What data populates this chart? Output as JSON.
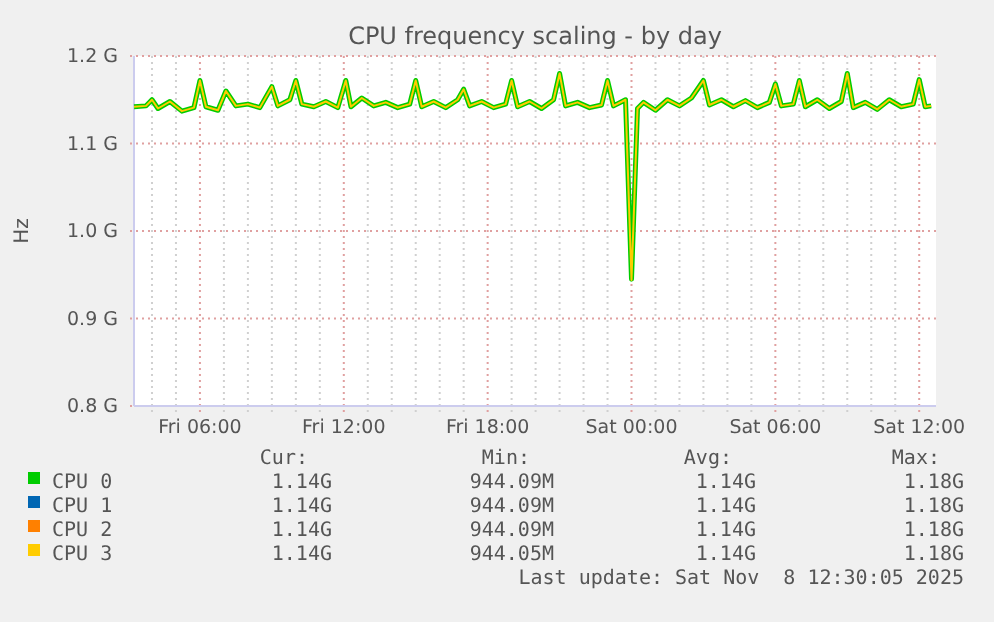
{
  "chart_data": {
    "type": "line",
    "title": "CPU frequency scaling - by day",
    "ylabel": "Hz",
    "x": [
      "2025-11-07T03:15",
      "2025-11-07T03:45",
      "2025-11-07T04:00",
      "2025-11-07T04:15",
      "2025-11-07T04:45",
      "2025-11-07T05:15",
      "2025-11-07T05:45",
      "2025-11-07T06:00",
      "2025-11-07T06:15",
      "2025-11-07T06:45",
      "2025-11-07T07:05",
      "2025-11-07T07:30",
      "2025-11-07T08:00",
      "2025-11-07T08:30",
      "2025-11-07T09:00",
      "2025-11-07T09:15",
      "2025-11-07T09:45",
      "2025-11-07T10:00",
      "2025-11-07T10:15",
      "2025-11-07T10:45",
      "2025-11-07T11:15",
      "2025-11-07T11:45",
      "2025-11-07T12:05",
      "2025-11-07T12:18",
      "2025-11-07T12:45",
      "2025-11-07T13:15",
      "2025-11-07T13:45",
      "2025-11-07T14:15",
      "2025-11-07T14:45",
      "2025-11-07T15:00",
      "2025-11-07T15:15",
      "2025-11-07T15:45",
      "2025-11-07T16:15",
      "2025-11-07T16:45",
      "2025-11-07T17:00",
      "2025-11-07T17:15",
      "2025-11-07T17:45",
      "2025-11-07T18:15",
      "2025-11-07T18:45",
      "2025-11-07T19:00",
      "2025-11-07T19:15",
      "2025-11-07T19:45",
      "2025-11-07T20:15",
      "2025-11-07T20:45",
      "2025-11-07T21:00",
      "2025-11-07T21:15",
      "2025-11-07T21:45",
      "2025-11-07T22:15",
      "2025-11-07T22:45",
      "2025-11-07T23:00",
      "2025-11-07T23:15",
      "2025-11-07T23:45",
      "2025-11-08T00:00",
      "2025-11-08T00:15",
      "2025-11-08T00:30",
      "2025-11-08T01:00",
      "2025-11-08T01:30",
      "2025-11-08T02:00",
      "2025-11-08T02:30",
      "2025-11-08T03:00",
      "2025-11-08T03:15",
      "2025-11-08T03:45",
      "2025-11-08T04:15",
      "2025-11-08T04:45",
      "2025-11-08T05:15",
      "2025-11-08T05:45",
      "2025-11-08T06:00",
      "2025-11-08T06:15",
      "2025-11-08T06:45",
      "2025-11-08T07:00",
      "2025-11-08T07:15",
      "2025-11-08T07:45",
      "2025-11-08T08:15",
      "2025-11-08T08:45",
      "2025-11-08T09:00",
      "2025-11-08T09:15",
      "2025-11-08T09:45",
      "2025-11-08T10:15",
      "2025-11-08T10:45",
      "2025-11-08T11:15",
      "2025-11-08T11:45",
      "2025-11-08T12:00",
      "2025-11-08T12:15",
      "2025-11-08T12:30"
    ],
    "series": [
      {
        "name": "CPU 0",
        "color": "#00cc00",
        "values": [
          1.142,
          1.143,
          1.15,
          1.14,
          1.148,
          1.137,
          1.141,
          1.172,
          1.142,
          1.138,
          1.16,
          1.143,
          1.145,
          1.141,
          1.165,
          1.143,
          1.15,
          1.172,
          1.145,
          1.142,
          1.148,
          1.141,
          1.172,
          1.142,
          1.152,
          1.143,
          1.147,
          1.141,
          1.145,
          1.172,
          1.142,
          1.148,
          1.141,
          1.15,
          1.162,
          1.143,
          1.148,
          1.141,
          1.145,
          1.172,
          1.142,
          1.148,
          1.14,
          1.15,
          1.18,
          1.143,
          1.147,
          1.141,
          1.144,
          1.172,
          1.143,
          1.15,
          0.945,
          1.14,
          1.147,
          1.138,
          1.15,
          1.143,
          1.152,
          1.172,
          1.144,
          1.15,
          1.142,
          1.149,
          1.141,
          1.147,
          1.168,
          1.143,
          1.145,
          1.172,
          1.142,
          1.15,
          1.14,
          1.148,
          1.18,
          1.141,
          1.147,
          1.139,
          1.15,
          1.142,
          1.145,
          1.173,
          1.142,
          1.143
        ]
      },
      {
        "name": "CPU 1",
        "color": "#0066b3",
        "values": [
          null,
          null,
          null,
          null,
          null,
          null,
          null,
          null,
          null,
          null,
          null,
          null,
          null,
          null,
          null,
          null,
          null,
          null,
          null,
          null,
          null,
          null,
          null,
          null,
          null,
          null,
          null,
          null,
          null,
          null,
          null,
          null,
          null,
          null,
          null,
          null,
          null,
          null,
          null,
          null,
          null,
          null,
          null,
          null,
          null,
          null,
          null,
          null,
          null,
          null,
          null,
          null,
          null,
          null,
          null,
          null,
          null,
          null,
          null,
          null,
          null,
          null,
          null,
          null,
          null,
          null,
          null,
          null,
          null,
          null,
          null,
          null,
          null,
          null,
          null,
          null,
          null,
          null,
          null,
          null,
          null,
          null,
          null,
          null
        ]
      },
      {
        "name": "CPU 2",
        "color": "#ff8000",
        "values": [
          null,
          null,
          null,
          null,
          null,
          null,
          null,
          null,
          null,
          null,
          null,
          null,
          null,
          null,
          null,
          null,
          null,
          null,
          null,
          null,
          null,
          null,
          null,
          null,
          null,
          null,
          null,
          null,
          null,
          null,
          null,
          null,
          null,
          null,
          null,
          null,
          null,
          null,
          null,
          null,
          null,
          null,
          null,
          null,
          null,
          null,
          null,
          null,
          null,
          null,
          null,
          null,
          null,
          null,
          null,
          null,
          null,
          null,
          null,
          null,
          null,
          null,
          null,
          null,
          null,
          null,
          null,
          null,
          null,
          null,
          null,
          null,
          null,
          null,
          null,
          null,
          null,
          null,
          null,
          null,
          null,
          null,
          null,
          null
        ]
      },
      {
        "name": "CPU 3",
        "color": "#ffcc00",
        "values": [
          1.142,
          1.143,
          1.15,
          1.14,
          1.148,
          1.137,
          1.141,
          1.172,
          1.142,
          1.138,
          1.16,
          1.143,
          1.145,
          1.141,
          1.165,
          1.143,
          1.15,
          1.172,
          1.145,
          1.142,
          1.148,
          1.141,
          1.172,
          1.142,
          1.152,
          1.143,
          1.147,
          1.141,
          1.145,
          1.172,
          1.142,
          1.148,
          1.141,
          1.15,
          1.162,
          1.143,
          1.148,
          1.141,
          1.145,
          1.172,
          1.142,
          1.148,
          1.14,
          1.15,
          1.18,
          1.143,
          1.147,
          1.141,
          1.144,
          1.172,
          1.143,
          1.15,
          0.944,
          1.14,
          1.147,
          1.138,
          1.15,
          1.143,
          1.152,
          1.172,
          1.144,
          1.15,
          1.142,
          1.149,
          1.141,
          1.147,
          1.168,
          1.143,
          1.145,
          1.172,
          1.142,
          1.15,
          1.14,
          1.148,
          1.18,
          1.141,
          1.147,
          1.139,
          1.15,
          1.142,
          1.145,
          1.173,
          1.142,
          1.143
        ]
      }
    ],
    "xlim": [
      "2025-11-07T03:15",
      "2025-11-08T12:42"
    ],
    "xticks": [
      {
        "value": "2025-11-07T04:00",
        "label": null
      },
      {
        "value": "2025-11-07T05:00",
        "label": null
      },
      {
        "value": "2025-11-07T06:00",
        "label": "Fri 06:00"
      },
      {
        "value": "2025-11-07T07:00",
        "label": null
      },
      {
        "value": "2025-11-07T08:00",
        "label": null
      },
      {
        "value": "2025-11-07T09:00",
        "label": null
      },
      {
        "value": "2025-11-07T10:00",
        "label": null
      },
      {
        "value": "2025-11-07T11:00",
        "label": null
      },
      {
        "value": "2025-11-07T12:00",
        "label": "Fri 12:00"
      },
      {
        "value": "2025-11-07T13:00",
        "label": null
      },
      {
        "value": "2025-11-07T14:00",
        "label": null
      },
      {
        "value": "2025-11-07T15:00",
        "label": null
      },
      {
        "value": "2025-11-07T16:00",
        "label": null
      },
      {
        "value": "2025-11-07T17:00",
        "label": null
      },
      {
        "value": "2025-11-07T18:00",
        "label": "Fri 18:00"
      },
      {
        "value": "2025-11-07T19:00",
        "label": null
      },
      {
        "value": "2025-11-07T20:00",
        "label": null
      },
      {
        "value": "2025-11-07T21:00",
        "label": null
      },
      {
        "value": "2025-11-07T22:00",
        "label": null
      },
      {
        "value": "2025-11-07T23:00",
        "label": null
      },
      {
        "value": "2025-11-08T00:00",
        "label": "Sat 00:00"
      },
      {
        "value": "2025-11-08T01:00",
        "label": null
      },
      {
        "value": "2025-11-08T02:00",
        "label": null
      },
      {
        "value": "2025-11-08T03:00",
        "label": null
      },
      {
        "value": "2025-11-08T04:00",
        "label": null
      },
      {
        "value": "2025-11-08T05:00",
        "label": null
      },
      {
        "value": "2025-11-08T06:00",
        "label": "Sat 06:00"
      },
      {
        "value": "2025-11-08T07:00",
        "label": null
      },
      {
        "value": "2025-11-08T08:00",
        "label": null
      },
      {
        "value": "2025-11-08T09:00",
        "label": null
      },
      {
        "value": "2025-11-08T10:00",
        "label": null
      },
      {
        "value": "2025-11-08T11:00",
        "label": null
      },
      {
        "value": "2025-11-08T12:00",
        "label": "Sat 12:00"
      }
    ],
    "ylim": [
      0.8,
      1.2
    ],
    "yticks": [
      {
        "value": 0.8,
        "label": "0.8 G"
      },
      {
        "value": 0.9,
        "label": "0.9 G"
      },
      {
        "value": 1.0,
        "label": "1.0 G"
      },
      {
        "value": 1.1,
        "label": "1.1 G"
      },
      {
        "value": 1.2,
        "label": "1.2 G"
      }
    ],
    "grid": true,
    "legend": "bottom",
    "marker": "none",
    "line_style": "solid",
    "annotations": [
      "Cur:",
      "Min:",
      "Avg:",
      "Max:",
      "1.14G",
      "944.09M",
      "1.14G",
      "1.18G",
      "1.14G",
      "944.09M",
      "1.14G",
      "1.18G",
      "1.14G",
      "944.09M",
      "1.14G",
      "1.18G",
      "1.14G",
      "944.05M",
      "1.14G",
      "1.18G",
      "Last update: Sat Nov  8 12:30:05 2025"
    ]
  }
}
